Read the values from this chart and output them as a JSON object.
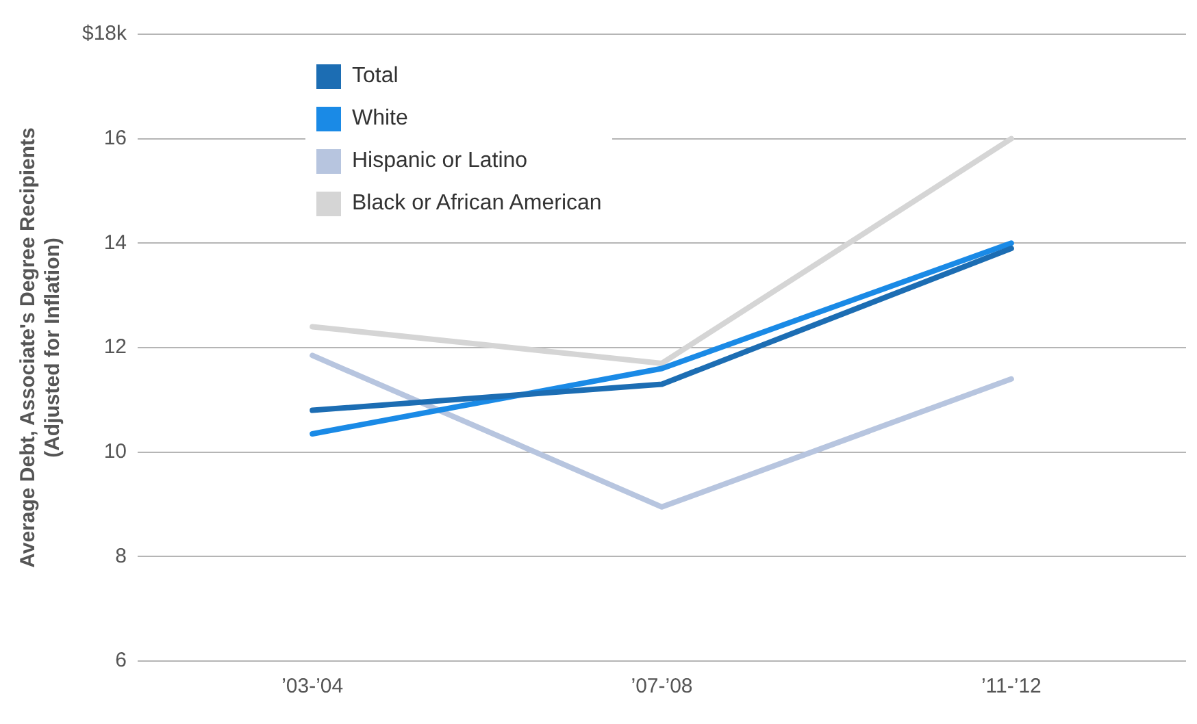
{
  "chart_data": {
    "type": "line",
    "ylabel": "Average Debt, Associate's Degree Recipients\n(Adjusted for Inflation)",
    "categories": [
      "’03-’04",
      "’07-’08",
      "’11-’12"
    ],
    "series": [
      {
        "name": "Total",
        "color": "#1c6db3",
        "values": [
          10.8,
          11.3,
          13.9
        ]
      },
      {
        "name": "White",
        "color": "#1a8ae6",
        "values": [
          10.35,
          11.6,
          14.0
        ]
      },
      {
        "name": "Hispanic or Latino",
        "color": "#b7c5df",
        "values": [
          11.85,
          8.95,
          11.4
        ]
      },
      {
        "name": "Black or African American",
        "color": "#d5d5d5",
        "values": [
          12.4,
          11.7,
          16.0
        ]
      }
    ],
    "ylim": [
      6,
      18
    ],
    "yticks": [
      6,
      8,
      10,
      12,
      14,
      16,
      {
        "value": 18,
        "label": "$18k"
      }
    ],
    "grid": "y",
    "legend": "top left",
    "marker": "none",
    "line_style": "solid"
  }
}
